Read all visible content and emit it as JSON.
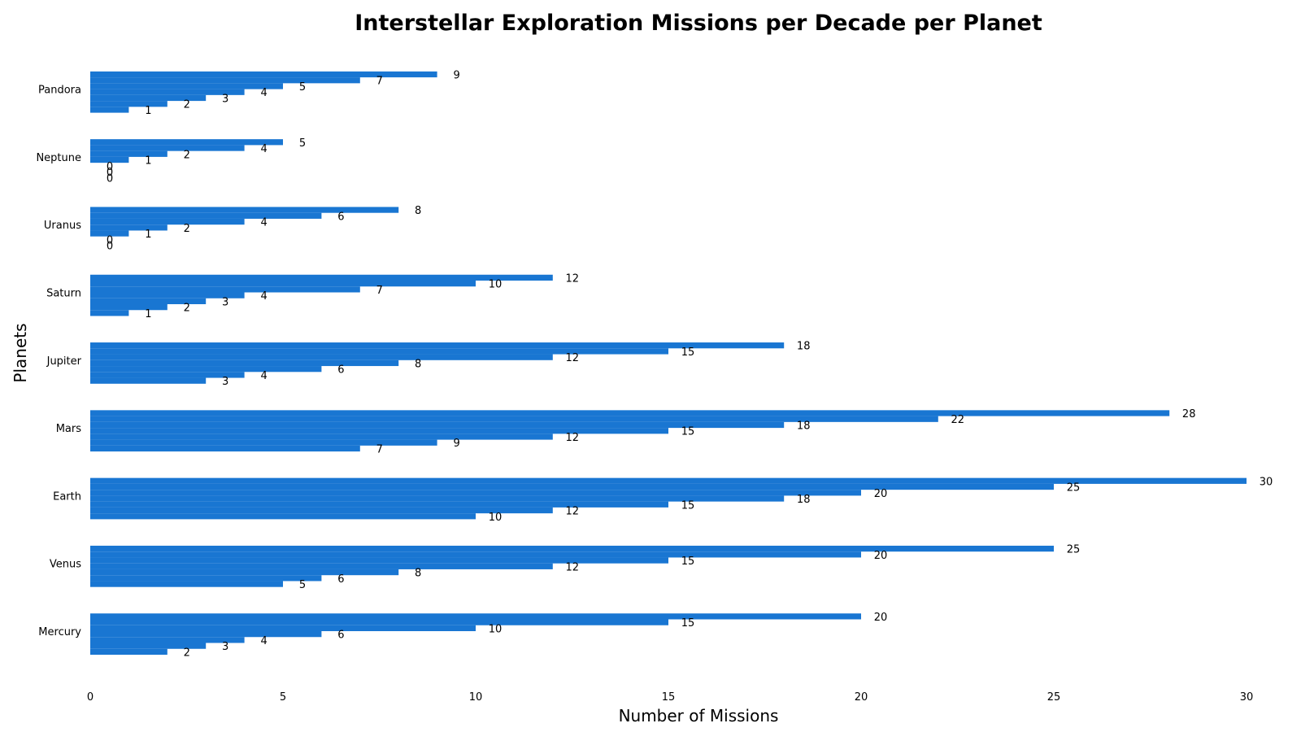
{
  "chart_data": {
    "type": "bar",
    "orientation": "horizontal",
    "title": "Interstellar Exploration Missions per Decade per Planet",
    "xlabel": "Number of Missions",
    "ylabel": "Planets",
    "xlim": [
      0,
      30
    ],
    "xticks": [
      0,
      5,
      10,
      15,
      20,
      25,
      30
    ],
    "grid": false,
    "bar_color": "#1976D2",
    "categories": [
      "Mercury",
      "Venus",
      "Earth",
      "Mars",
      "Jupiter",
      "Saturn",
      "Uranus",
      "Neptune",
      "Pandora"
    ],
    "series_count": 7,
    "values": [
      [
        2,
        3,
        4,
        6,
        10,
        15,
        20
      ],
      [
        5,
        6,
        8,
        12,
        15,
        20,
        25
      ],
      [
        10,
        12,
        15,
        18,
        20,
        25,
        30
      ],
      [
        7,
        9,
        12,
        15,
        18,
        22,
        28
      ],
      [
        3,
        4,
        6,
        8,
        12,
        15,
        18
      ],
      [
        1,
        2,
        3,
        4,
        7,
        10,
        12
      ],
      [
        0,
        0,
        1,
        2,
        4,
        6,
        8
      ],
      [
        0,
        0,
        0,
        1,
        2,
        4,
        5
      ],
      [
        1,
        2,
        3,
        4,
        5,
        7,
        9
      ]
    ]
  }
}
